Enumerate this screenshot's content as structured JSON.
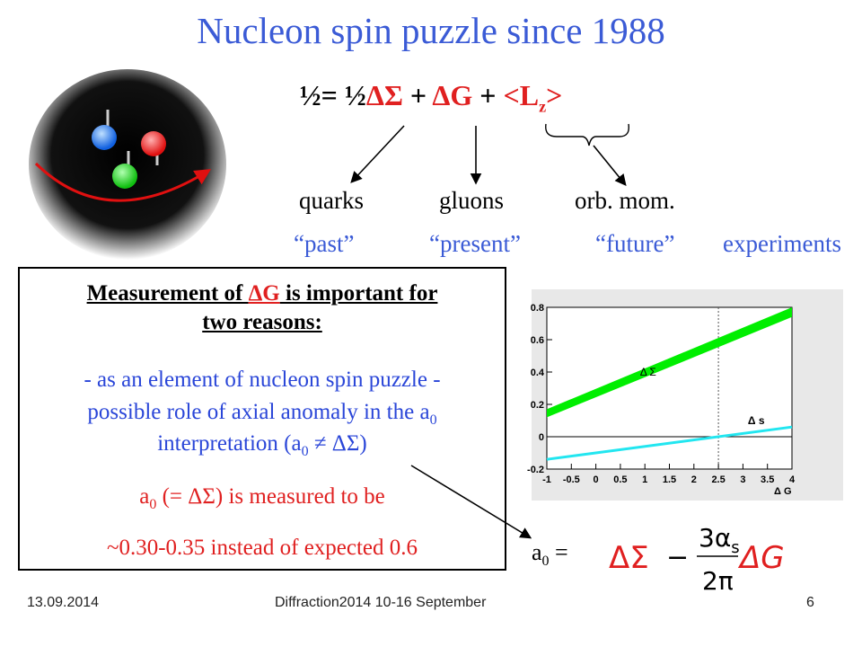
{
  "slide": {
    "title": "Nucleon spin puzzle since 1988",
    "formula": {
      "lhs": "½=",
      "half": "½",
      "dsigma": "ΔΣ",
      "plus1": "+",
      "dg": "ΔG",
      "plus2": "+",
      "lz": "<L",
      "lz_sub": "z",
      "lz_close": ">"
    },
    "labels": {
      "quarks": "quarks",
      "gluons": "gluons",
      "orb": "orb. mom.",
      "past": "“past”",
      "present": "“present”",
      "future": "“future”",
      "experiments": "experiments"
    },
    "box": {
      "heading_a": "Measurement of ",
      "heading_dg": "ΔG",
      "heading_b": " is important for",
      "heading_line2": "two reasons:",
      "line1": " - as an element of nucleon spin puzzle  -",
      "line2a": "possible role of axial anomaly in the     a",
      "line2_sub": "0",
      "line3a": "interpretation (a",
      "line3_sub": "0",
      "line3b": " ≠ ΔΣ)",
      "line4a": "a",
      "line4_sub": "0",
      "line4b": " (= ΔΣ) is measured  to be",
      "line5": "~0.30-0.35 instead of expected 0.6"
    },
    "equation": {
      "a0": "a",
      "a0_sub": "0",
      "eq": " =",
      "dsigma": "ΔΣ",
      "minus": "−",
      "num": "3α",
      "num_sub": "s",
      "den": "2π",
      "dg": "ΔG"
    },
    "footer": {
      "date": "13.09.2014",
      "event": "Diffraction2014 10-16 September",
      "page": "6"
    }
  },
  "colors": {
    "title": "#3b5bd6",
    "accent_red": "#e02020",
    "band_green": "#00ee00",
    "line_cyan": "#22e6f0"
  },
  "chart_data": {
    "type": "line",
    "xlabel": "Δ G",
    "ylabel": "",
    "xlim": [
      -1,
      4
    ],
    "ylim": [
      -0.2,
      0.8
    ],
    "xticks": [
      "-1",
      "-0.5",
      "0",
      "0.5",
      "1",
      "1.5",
      "2",
      "2.5",
      "3",
      "3.5",
      "4"
    ],
    "yticks": [
      "-0.2",
      "0",
      "0.2",
      "0.4",
      "0.6",
      "0.8"
    ],
    "series": [
      {
        "name": "Δ Σ",
        "x": [
          -1,
          4
        ],
        "y_low": [
          0.12,
          0.74
        ],
        "y_high": [
          0.17,
          0.8
        ],
        "color": "#00ee00"
      },
      {
        "name": "Δ s",
        "x": [
          -1,
          4
        ],
        "y": [
          -0.14,
          0.06
        ],
        "color": "#22e6f0"
      }
    ],
    "vline_x": 2.5
  }
}
